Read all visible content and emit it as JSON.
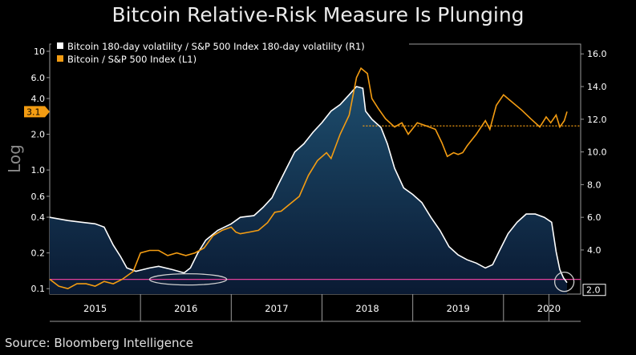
{
  "title": "Bitcoin Relative-Risk Measure Is Plunging",
  "source": "Source: Bloomberg Intelligence",
  "chart_data": {
    "type": "line",
    "title": "Bitcoin Relative-Risk Measure Is Plunging",
    "y_left": {
      "label": "Log",
      "scale": "log",
      "range": [
        0.09,
        11.5
      ],
      "ticks": [
        {
          "v": 10,
          "t": "10"
        },
        {
          "v": 6,
          "t": "6.0"
        },
        {
          "v": 4,
          "t": "4.0"
        },
        {
          "v": 2,
          "t": "2.0"
        },
        {
          "v": 1,
          "t": "1.0"
        },
        {
          "v": 0.6,
          "t": "0.6"
        },
        {
          "v": 0.4,
          "t": "0.4"
        },
        {
          "v": 0.2,
          "t": "0.2"
        },
        {
          "v": 0.1,
          "t": "0.1"
        }
      ]
    },
    "y_right": {
      "range": [
        1.3,
        16.6
      ],
      "ticks": [
        {
          "v": 16,
          "t": "16.0"
        },
        {
          "v": 14,
          "t": "14.0"
        },
        {
          "v": 12,
          "t": "12.0"
        },
        {
          "v": 10,
          "t": "10.0"
        },
        {
          "v": 8,
          "t": "8.0"
        },
        {
          "v": 6,
          "t": "6.0"
        },
        {
          "v": 4,
          "t": "4.0"
        }
      ]
    },
    "x": {
      "range": [
        2014.5,
        2020.35
      ],
      "labels": [
        {
          "v": 2015.0,
          "t": "2015"
        },
        {
          "v": 2016.0,
          "t": "2016"
        },
        {
          "v": 2017.0,
          "t": "2017"
        },
        {
          "v": 2018.0,
          "t": "2018"
        },
        {
          "v": 2019.0,
          "t": "2019"
        },
        {
          "v": 2020.0,
          "t": "2020"
        }
      ],
      "separators": [
        2015.5,
        2016.5,
        2017.5,
        2018.5,
        2019.5,
        2020.0
      ]
    },
    "series": [
      {
        "name": "Bitcoin 180-day volatility / S&P 500 Index 180-day volatility (R1)",
        "axis": "right",
        "color": "#ffffff",
        "fill": true,
        "last_value_label": "2.0",
        "points": [
          [
            2014.5,
            6.0
          ],
          [
            2014.7,
            5.8
          ],
          [
            2014.85,
            5.7
          ],
          [
            2015.0,
            5.6
          ],
          [
            2015.1,
            5.4
          ],
          [
            2015.2,
            4.3
          ],
          [
            2015.28,
            3.6
          ],
          [
            2015.35,
            2.9
          ],
          [
            2015.45,
            2.7
          ],
          [
            2015.6,
            2.9
          ],
          [
            2015.7,
            3.0
          ],
          [
            2015.85,
            2.8
          ],
          [
            2015.98,
            2.6
          ],
          [
            2016.05,
            2.9
          ],
          [
            2016.13,
            3.8
          ],
          [
            2016.22,
            4.6
          ],
          [
            2016.35,
            5.2
          ],
          [
            2016.5,
            5.6
          ],
          [
            2016.6,
            6.0
          ],
          [
            2016.75,
            6.1
          ],
          [
            2016.85,
            6.6
          ],
          [
            2016.95,
            7.2
          ],
          [
            2017.0,
            7.8
          ],
          [
            2017.1,
            8.9
          ],
          [
            2017.2,
            10.0
          ],
          [
            2017.3,
            10.5
          ],
          [
            2017.4,
            11.2
          ],
          [
            2017.5,
            11.8
          ],
          [
            2017.6,
            12.5
          ],
          [
            2017.7,
            12.9
          ],
          [
            2017.8,
            13.5
          ],
          [
            2017.88,
            14.0
          ],
          [
            2017.95,
            13.9
          ],
          [
            2017.98,
            12.5
          ],
          [
            2018.05,
            12.0
          ],
          [
            2018.15,
            11.5
          ],
          [
            2018.22,
            10.5
          ],
          [
            2018.3,
            9.0
          ],
          [
            2018.4,
            7.8
          ],
          [
            2018.5,
            7.4
          ],
          [
            2018.6,
            6.9
          ],
          [
            2018.7,
            6.0
          ],
          [
            2018.8,
            5.2
          ],
          [
            2018.9,
            4.2
          ],
          [
            2019.0,
            3.7
          ],
          [
            2019.1,
            3.4
          ],
          [
            2019.2,
            3.2
          ],
          [
            2019.3,
            2.9
          ],
          [
            2019.38,
            3.1
          ],
          [
            2019.45,
            3.9
          ],
          [
            2019.55,
            5.0
          ],
          [
            2019.65,
            5.7
          ],
          [
            2019.75,
            6.2
          ],
          [
            2019.85,
            6.2
          ],
          [
            2019.95,
            6.0
          ],
          [
            2020.03,
            5.7
          ],
          [
            2020.08,
            3.9
          ],
          [
            2020.12,
            2.8
          ],
          [
            2020.16,
            2.3
          ],
          [
            2020.2,
            2.0
          ]
        ]
      },
      {
        "name": "Bitcoin / S&P 500 Index (L1)",
        "axis": "left",
        "color": "#f39c12",
        "last_value_label": "3.1",
        "points": [
          [
            2014.5,
            0.12
          ],
          [
            2014.6,
            0.105
          ],
          [
            2014.7,
            0.1
          ],
          [
            2014.8,
            0.11
          ],
          [
            2014.9,
            0.11
          ],
          [
            2015.0,
            0.105
          ],
          [
            2015.1,
            0.115
          ],
          [
            2015.2,
            0.11
          ],
          [
            2015.3,
            0.12
          ],
          [
            2015.42,
            0.14
          ],
          [
            2015.5,
            0.2
          ],
          [
            2015.6,
            0.21
          ],
          [
            2015.7,
            0.21
          ],
          [
            2015.8,
            0.19
          ],
          [
            2015.9,
            0.2
          ],
          [
            2016.0,
            0.19
          ],
          [
            2016.1,
            0.2
          ],
          [
            2016.2,
            0.22
          ],
          [
            2016.3,
            0.28
          ],
          [
            2016.4,
            0.31
          ],
          [
            2016.5,
            0.33
          ],
          [
            2016.55,
            0.3
          ],
          [
            2016.6,
            0.29
          ],
          [
            2016.7,
            0.3
          ],
          [
            2016.8,
            0.31
          ],
          [
            2016.9,
            0.36
          ],
          [
            2016.98,
            0.44
          ],
          [
            2017.05,
            0.45
          ],
          [
            2017.15,
            0.52
          ],
          [
            2017.25,
            0.6
          ],
          [
            2017.35,
            0.9
          ],
          [
            2017.45,
            1.2
          ],
          [
            2017.55,
            1.4
          ],
          [
            2017.6,
            1.25
          ],
          [
            2017.7,
            2.0
          ],
          [
            2017.8,
            2.9
          ],
          [
            2017.88,
            6.0
          ],
          [
            2017.93,
            7.2
          ],
          [
            2018.0,
            6.5
          ],
          [
            2018.05,
            4.0
          ],
          [
            2018.12,
            3.3
          ],
          [
            2018.2,
            2.7
          ],
          [
            2018.3,
            2.3
          ],
          [
            2018.38,
            2.5
          ],
          [
            2018.45,
            2.0
          ],
          [
            2018.55,
            2.5
          ],
          [
            2018.65,
            2.35
          ],
          [
            2018.75,
            2.2
          ],
          [
            2018.82,
            1.7
          ],
          [
            2018.88,
            1.3
          ],
          [
            2018.95,
            1.4
          ],
          [
            2019.0,
            1.35
          ],
          [
            2019.05,
            1.4
          ],
          [
            2019.1,
            1.6
          ],
          [
            2019.2,
            2.0
          ],
          [
            2019.3,
            2.6
          ],
          [
            2019.35,
            2.2
          ],
          [
            2019.42,
            3.5
          ],
          [
            2019.5,
            4.3
          ],
          [
            2019.6,
            3.7
          ],
          [
            2019.7,
            3.2
          ],
          [
            2019.8,
            2.7
          ],
          [
            2019.9,
            2.3
          ],
          [
            2019.97,
            2.8
          ],
          [
            2020.02,
            2.5
          ],
          [
            2020.08,
            2.9
          ],
          [
            2020.12,
            2.3
          ],
          [
            2020.17,
            2.6
          ],
          [
            2020.2,
            3.1
          ]
        ]
      }
    ],
    "reference_lines": [
      {
        "axis": "right",
        "value": 2.2,
        "color": "#e0409a"
      },
      {
        "axis": "left",
        "value": 2.35,
        "from_x": 2017.95,
        "color": "#f39c12",
        "dotted": true
      }
    ],
    "annotations": [
      {
        "shape": "ellipse",
        "x": [
          2015.6,
          2016.45
        ],
        "y_right": 2.2
      },
      {
        "shape": "circle",
        "x": 2020.17,
        "y_right": 2.2
      }
    ],
    "legend_position": "top-left",
    "grid": false
  }
}
